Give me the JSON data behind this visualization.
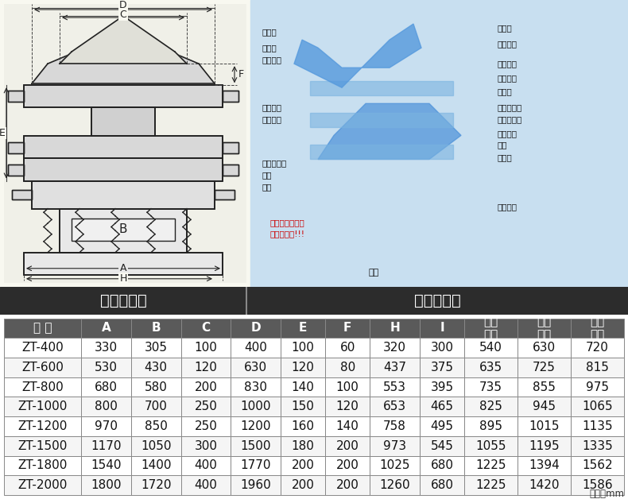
{
  "title_bar_color": "#2c2c2c",
  "title_bar_text_color": "#ffffff",
  "left_title": "外形尺寸图",
  "right_title": "一般结构图",
  "table_header": [
    "型 号",
    "A",
    "B",
    "C",
    "D",
    "E",
    "F",
    "H",
    "I",
    "一层\n高度",
    "二层\n高度",
    "三层\n高度"
  ],
  "table_data": [
    [
      "ZT-400",
      "330",
      "305",
      "100",
      "400",
      "100",
      "60",
      "320",
      "300",
      "540",
      "630",
      "720"
    ],
    [
      "ZT-600",
      "530",
      "430",
      "120",
      "630",
      "120",
      "80",
      "437",
      "375",
      "635",
      "725",
      "815"
    ],
    [
      "ZT-800",
      "680",
      "580",
      "200",
      "830",
      "140",
      "100",
      "553",
      "395",
      "735",
      "855",
      "975"
    ],
    [
      "ZT-1000",
      "800",
      "700",
      "250",
      "1000",
      "150",
      "120",
      "653",
      "465",
      "825",
      "945",
      "1065"
    ],
    [
      "ZT-1200",
      "970",
      "850",
      "250",
      "1200",
      "160",
      "140",
      "758",
      "495",
      "895",
      "1015",
      "1135"
    ],
    [
      "ZT-1500",
      "1170",
      "1050",
      "300",
      "1500",
      "180",
      "200",
      "973",
      "545",
      "1055",
      "1195",
      "1335"
    ],
    [
      "ZT-1800",
      "1540",
      "1400",
      "400",
      "1770",
      "200",
      "200",
      "1025",
      "680",
      "1225",
      "1394",
      "1562"
    ],
    [
      "ZT-2000",
      "1800",
      "1720",
      "400",
      "1960",
      "200",
      "200",
      "1260",
      "680",
      "1225",
      "1420",
      "1586"
    ]
  ],
  "table_bg_color": "#ffffff",
  "table_header_bg": "#5a5a5a",
  "table_header_text": "#ffffff",
  "table_border_color": "#888888",
  "table_row_even": "#f5f5f5",
  "table_row_odd": "#ffffff",
  "unit_text": "单位：mm",
  "diagram_bg": "#d6e8f5",
  "fig_bg": "#ffffff"
}
